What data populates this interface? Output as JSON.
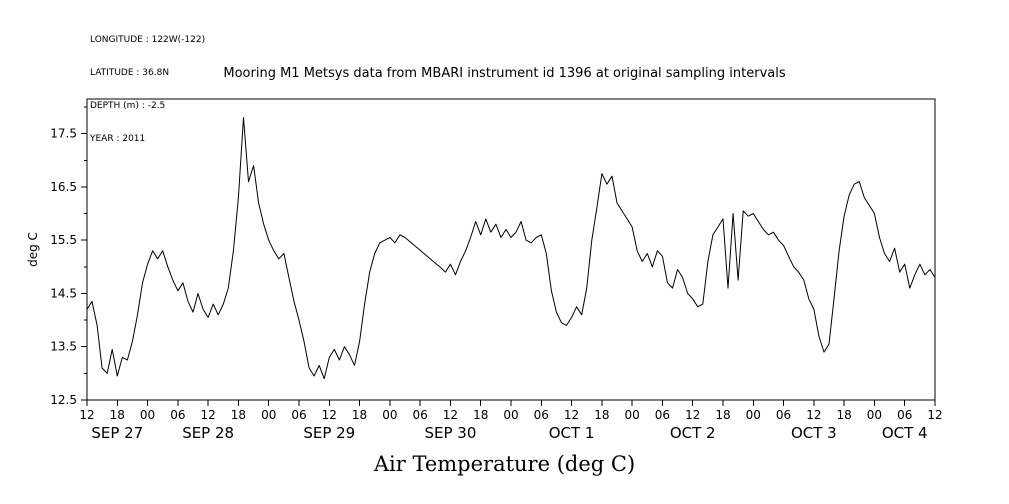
{
  "meta": {
    "longitude": "LONGITUDE : 122W(-122)",
    "latitude": "LATITUDE : 36.8N",
    "depth": "DEPTH (m) : -2.5",
    "year": "YEAR : 2011"
  },
  "title": "Mooring M1 Metsys data from MBARI instrument id 1396 at original sampling intervals",
  "x_axis_title": "Air Temperature (deg C)",
  "chart_data": {
    "type": "line",
    "title": "Mooring M1 Metsys data from MBARI instrument id 1396 at original sampling intervals",
    "xlabel": "Air Temperature (deg C)",
    "ylabel": "deg C",
    "line_color": "#000000",
    "background_color": "#ffffff",
    "grid": false,
    "legend": false,
    "x_start_label": "SEP 27 2011 12:00",
    "x_step_hours": 1,
    "x_total_hours": 168,
    "ylim": [
      12.5,
      18.15
    ],
    "yticks": [
      12.5,
      13.5,
      14.5,
      15.5,
      16.5,
      17.5
    ],
    "ytick_minor": [
      13.0,
      14.0,
      15.0,
      16.0,
      17.0,
      18.0
    ],
    "xtick_step_hours": 6,
    "xtick_labels": [
      "12",
      "18",
      "00",
      "06",
      "12",
      "18",
      "00",
      "06",
      "12",
      "18",
      "00",
      "06",
      "12",
      "18",
      "00",
      "06",
      "12",
      "18",
      "00",
      "06",
      "12",
      "18",
      "00",
      "06",
      "12",
      "18",
      "00",
      "06",
      "12"
    ],
    "date_labels": [
      {
        "label": "SEP 27",
        "center_hour": 6
      },
      {
        "label": "SEP 28",
        "center_hour": 24
      },
      {
        "label": "SEP 29",
        "center_hour": 48
      },
      {
        "label": "SEP 30",
        "center_hour": 72
      },
      {
        "label": "OCT 1",
        "center_hour": 96
      },
      {
        "label": "OCT 2",
        "center_hour": 120
      },
      {
        "label": "OCT 3",
        "center_hour": 144
      },
      {
        "label": "OCT 4",
        "center_hour": 162
      }
    ],
    "values": [
      14.2,
      14.35,
      13.9,
      13.1,
      13.0,
      13.45,
      12.95,
      13.3,
      13.25,
      13.6,
      14.1,
      14.7,
      15.05,
      15.3,
      15.15,
      15.3,
      15.0,
      14.75,
      14.55,
      14.7,
      14.35,
      14.15,
      14.5,
      14.2,
      14.05,
      14.3,
      14.1,
      14.3,
      14.6,
      15.3,
      16.3,
      17.8,
      16.6,
      16.9,
      16.2,
      15.8,
      15.5,
      15.3,
      15.15,
      15.25,
      14.8,
      14.35,
      14.0,
      13.6,
      13.1,
      12.95,
      13.15,
      12.9,
      13.3,
      13.45,
      13.25,
      13.5,
      13.35,
      13.15,
      13.6,
      14.3,
      14.9,
      15.25,
      15.45,
      15.5,
      15.55,
      15.45,
      15.6,
      15.55,
      15.47,
      15.39,
      15.31,
      15.23,
      15.15,
      15.07,
      14.99,
      14.9,
      15.05,
      14.85,
      15.1,
      15.3,
      15.55,
      15.85,
      15.6,
      15.9,
      15.65,
      15.8,
      15.55,
      15.7,
      15.55,
      15.65,
      15.85,
      15.5,
      15.45,
      15.55,
      15.6,
      15.25,
      14.55,
      14.15,
      13.95,
      13.9,
      14.05,
      14.25,
      14.1,
      14.6,
      15.5,
      16.1,
      16.75,
      16.55,
      16.7,
      16.2,
      16.05,
      15.9,
      15.75,
      15.3,
      15.1,
      15.25,
      15.0,
      15.3,
      15.2,
      14.7,
      14.6,
      14.95,
      14.8,
      14.5,
      14.4,
      14.25,
      14.3,
      15.1,
      15.6,
      15.75,
      15.9,
      14.6,
      16.0,
      14.75,
      16.05,
      15.95,
      16.0,
      15.85,
      15.7,
      15.6,
      15.65,
      15.5,
      15.4,
      15.2,
      15.0,
      14.9,
      14.75,
      14.4,
      14.2,
      13.7,
      13.4,
      13.55,
      14.4,
      15.3,
      15.95,
      16.35,
      16.55,
      16.6,
      16.3,
      16.15,
      16.0,
      15.55,
      15.25,
      15.1,
      15.35,
      14.9,
      15.05,
      14.6,
      14.85,
      15.05,
      14.85,
      14.95,
      14.8
    ]
  }
}
